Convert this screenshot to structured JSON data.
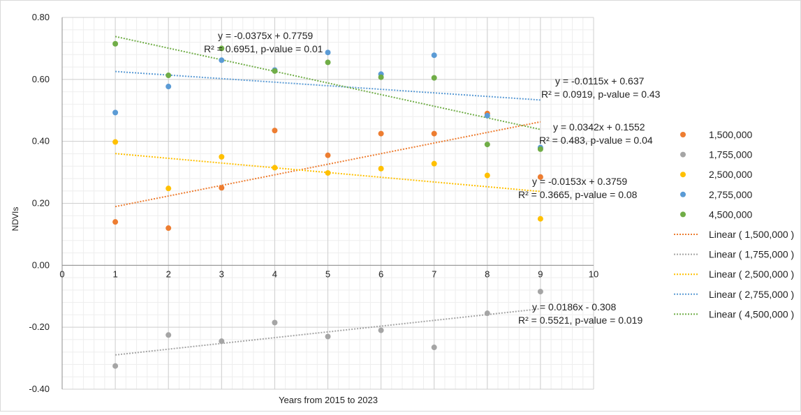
{
  "chart_data": {
    "type": "scatter",
    "xlabel": "Years from 2015 to 2023",
    "ylabel": "NDVIs",
    "xlim": [
      0,
      10
    ],
    "ylim": [
      -0.4,
      0.8
    ],
    "x_ticks": [
      "0",
      "1",
      "2",
      "3",
      "4",
      "5",
      "6",
      "7",
      "8",
      "9",
      "10"
    ],
    "y_ticks": [
      "-0.40",
      "-0.20",
      "0.00",
      "0.20",
      "0.40",
      "0.60",
      "0.80"
    ],
    "grid": true,
    "legend_position": "right",
    "series": [
      {
        "name": "1,500,000",
        "color": "#ED7D31",
        "x": [
          1,
          2,
          3,
          4,
          5,
          6,
          7,
          8,
          9
        ],
        "y": [
          0.14,
          0.12,
          0.25,
          0.435,
          0.355,
          0.425,
          0.425,
          0.49,
          0.285
        ]
      },
      {
        "name": "1,755,000",
        "color": "#A5A5A5",
        "x": [
          1,
          2,
          3,
          4,
          5,
          6,
          7,
          8,
          9
        ],
        "y": [
          -0.325,
          -0.225,
          -0.245,
          -0.185,
          -0.23,
          -0.21,
          -0.265,
          -0.155,
          -0.085
        ]
      },
      {
        "name": "2,500,000",
        "color": "#FFC000",
        "x": [
          1,
          2,
          3,
          4,
          5,
          6,
          7,
          8,
          9
        ],
        "y": [
          0.398,
          0.248,
          0.35,
          0.315,
          0.298,
          0.312,
          0.328,
          0.29,
          0.15
        ]
      },
      {
        "name": "2,755,000",
        "color": "#5B9BD5",
        "x": [
          1,
          2,
          3,
          4,
          5,
          6,
          7,
          8,
          9
        ],
        "y": [
          0.493,
          0.577,
          0.662,
          0.63,
          0.687,
          0.617,
          0.678,
          0.483,
          0.38
        ]
      },
      {
        "name": "4,500,000",
        "color": "#70AD47",
        "x": [
          1,
          2,
          3,
          4,
          5,
          6,
          7,
          8,
          9
        ],
        "y": [
          0.715,
          0.613,
          0.7,
          0.627,
          0.655,
          0.607,
          0.605,
          0.39,
          0.375
        ]
      }
    ],
    "trendlines": [
      {
        "name": "Linear ( 1,500,000 )",
        "color": "#ED7D31",
        "slope": 0.0342,
        "intercept": 0.1552,
        "equation": "y = 0.0342x + 0.1552",
        "stats": "R² = 0.483, p-value = 0.04"
      },
      {
        "name": "Linear ( 1,755,000 )",
        "color": "#A5A5A5",
        "slope": 0.0186,
        "intercept": -0.308,
        "equation": "y = 0.0186x - 0.308",
        "stats": "R² = 0.5521, p-value = 0.019"
      },
      {
        "name": "Linear ( 2,500,000 )",
        "color": "#FFC000",
        "slope": -0.0153,
        "intercept": 0.3759,
        "equation": "y = -0.0153x + 0.3759",
        "stats": "R² = 0.3665, p-value = 0.08"
      },
      {
        "name": "Linear ( 2,755,000 )",
        "color": "#5B9BD5",
        "slope": -0.0115,
        "intercept": 0.637,
        "equation": "y = -0.0115x + 0.637",
        "stats": "R² = 0.0919, p-value = 0.43"
      },
      {
        "name": "Linear ( 4,500,000 )",
        "color": "#70AD47",
        "slope": -0.0375,
        "intercept": 0.7759,
        "equation": "y = -0.0375x + 0.7759",
        "stats": "R² = 0.6951, p-value = 0.01"
      }
    ]
  }
}
